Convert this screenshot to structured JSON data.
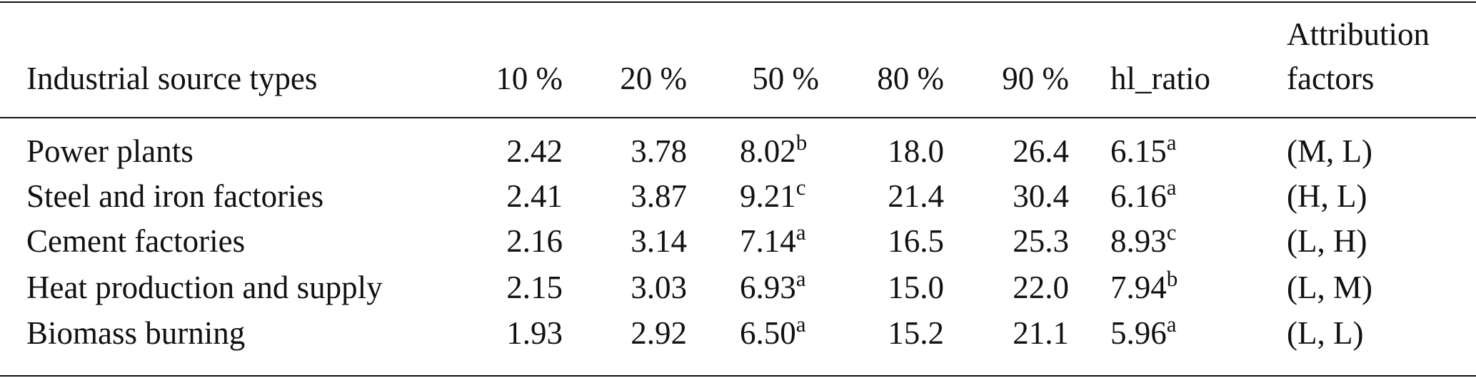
{
  "table": {
    "header": [
      "Industrial source types",
      "10 %",
      "20 %",
      "50 %",
      "80 %",
      "90 %",
      "hl_ratio",
      [
        "Attribution",
        "factors"
      ]
    ],
    "rows": [
      [
        "Power plants",
        "2.42",
        "3.78",
        {
          "text": "8.02",
          "sup": "b"
        },
        "18.0",
        "26.4",
        {
          "text": "6.15",
          "sup": "a"
        },
        "(M, L)"
      ],
      [
        "Steel and iron factories",
        "2.41",
        "3.87",
        {
          "text": "9.21",
          "sup": "c"
        },
        "21.4",
        "30.4",
        {
          "text": "6.16",
          "sup": "a"
        },
        "(H, L)"
      ],
      [
        "Cement factories",
        "2.16",
        "3.14",
        {
          "text": "7.14",
          "sup": "a"
        },
        "16.5",
        "25.3",
        {
          "text": "8.93",
          "sup": "c"
        },
        "(L, H)"
      ],
      [
        "Heat production and supply",
        "2.15",
        "3.03",
        {
          "text": "6.93",
          "sup": "a"
        },
        "15.0",
        "22.0",
        {
          "text": "7.94",
          "sup": "b"
        },
        "(L, M)"
      ],
      [
        "Biomass burning",
        "1.93",
        "2.92",
        {
          "text": "6.50",
          "sup": "a"
        },
        "15.2",
        "21.1",
        {
          "text": "5.96",
          "sup": "a"
        },
        "(L, L)"
      ]
    ]
  }
}
